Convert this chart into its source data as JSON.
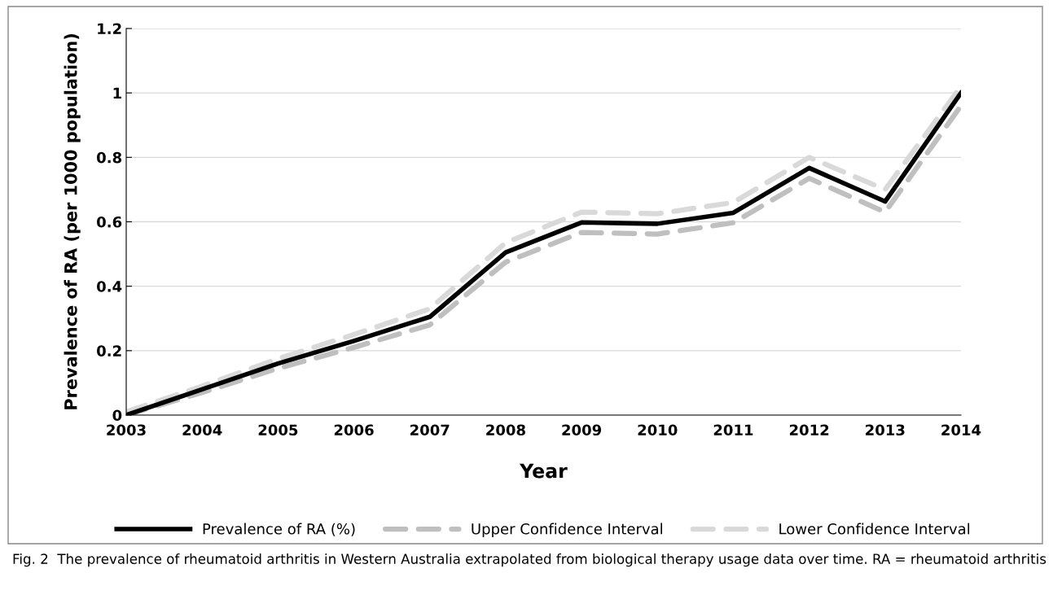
{
  "chart_data": {
    "type": "line",
    "xlabel": "Year",
    "ylabel": "Prevalence of RA (per 1000 population)",
    "categories": [
      "2003",
      "2004",
      "2005",
      "2006",
      "2007",
      "2008",
      "2009",
      "2010",
      "2011",
      "2012",
      "2013",
      "2014"
    ],
    "series": [
      {
        "name": "Prevalence of RA (%)",
        "color": "#000000",
        "line_style": "solid",
        "values": [
          0,
          0.08,
          0.16,
          0.23,
          0.305,
          0.505,
          0.598,
          0.594,
          0.628,
          0.767,
          0.663,
          1.0
        ]
      },
      {
        "name": "Upper Confidence Interval",
        "color": "#bfbfbf",
        "line_style": "dashed",
        "values": [
          0,
          0.07,
          0.145,
          0.21,
          0.28,
          0.475,
          0.567,
          0.562,
          0.597,
          0.735,
          0.63,
          0.96
        ]
      },
      {
        "name": "Lower Confidence Interval",
        "color": "#d9d9d9",
        "line_style": "dashed",
        "values": [
          0.01,
          0.09,
          0.175,
          0.25,
          0.33,
          0.535,
          0.63,
          0.625,
          0.66,
          0.8,
          0.7,
          1.02
        ]
      }
    ],
    "ylim": [
      0,
      1.2
    ],
    "yticks": [
      0,
      0.2,
      0.4,
      0.6,
      0.8,
      1,
      1.2
    ],
    "grid": "y",
    "legend": "bottom",
    "marker": "none",
    "annotations": [
      "Fig. 2  The prevalence of rheumatoid arthritis in Western Australia extrapolated from biological therapy usage data over time. RA = rheumatoid arthritis"
    ]
  }
}
